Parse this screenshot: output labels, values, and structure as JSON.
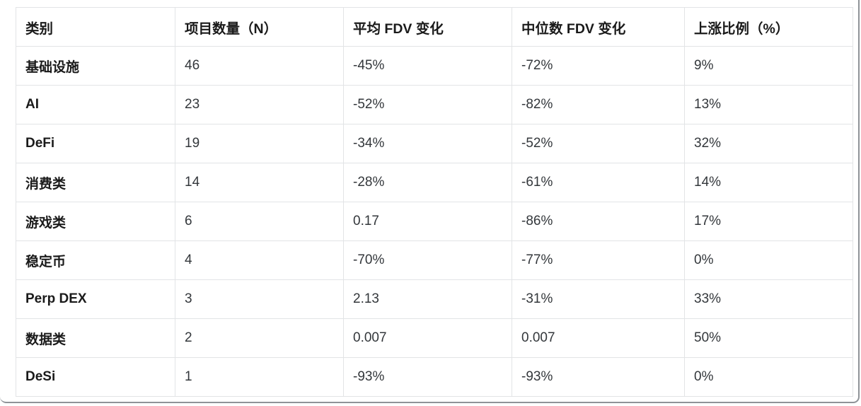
{
  "colors": {
    "background": "#ffffff",
    "grid_line": "#e2e4e6",
    "frame_border": "#8f9398",
    "header_text": "#1a1a1a",
    "cell_text": "#33373b"
  },
  "chart_data": {
    "type": "table",
    "columns": [
      "类别",
      "项目数量（N）",
      "平均 FDV 变化",
      "中位数 FDV 变化",
      "上涨比例（%）"
    ],
    "rows": [
      [
        "基础设施",
        "46",
        "-45%",
        "-72%",
        "9%"
      ],
      [
        "AI",
        "23",
        "-52%",
        "-82%",
        "13%"
      ],
      [
        "DeFi",
        "19",
        "-34%",
        "-52%",
        "32%"
      ],
      [
        "消费类",
        "14",
        "-28%",
        "-61%",
        "14%"
      ],
      [
        "游戏类",
        "6",
        "0.17",
        "-86%",
        "17%"
      ],
      [
        "稳定币",
        "4",
        "-70%",
        "-77%",
        "0%"
      ],
      [
        "Perp DEX",
        "3",
        "2.13",
        "-31%",
        "33%"
      ],
      [
        "数据类",
        "2",
        "0.007",
        "0.007",
        "50%"
      ],
      [
        "DeSi",
        "1",
        "-93%",
        "-93%",
        "0%"
      ]
    ],
    "layout": {
      "grid": true,
      "header_row_bold": true,
      "first_column_bold": true
    }
  }
}
